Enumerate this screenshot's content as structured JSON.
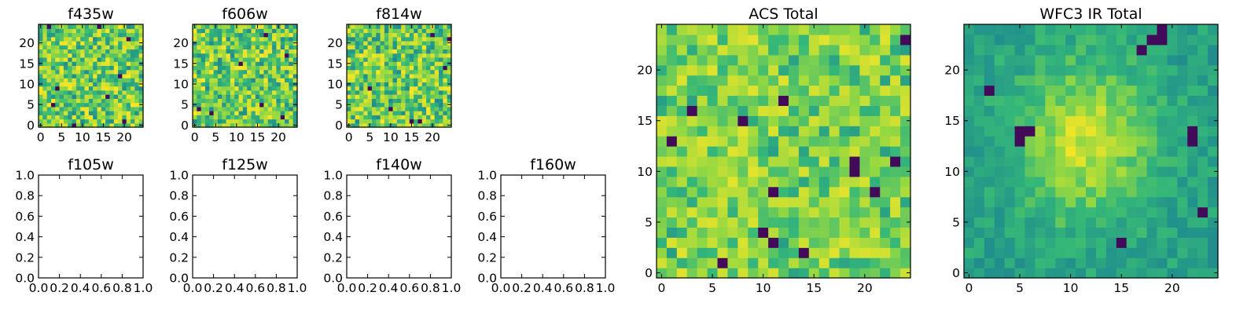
{
  "figure": {
    "background": "#ffffff"
  },
  "colormap": {
    "name": "viridis",
    "stops": [
      "#440154",
      "#31688e",
      "#21918c",
      "#35b779",
      "#90d743",
      "#fde725"
    ]
  },
  "chart_data": [
    {
      "id": "f435w",
      "type": "heatmap",
      "title": "f435w",
      "grid_size": 25,
      "xlim": [
        -0.5,
        24.5
      ],
      "ylim": [
        -0.5,
        24.5
      ],
      "xticks": [
        "0",
        "5",
        "10",
        "15",
        "20"
      ],
      "yticks": [
        "0",
        "5",
        "10",
        "15",
        "20"
      ],
      "seed": 435,
      "mode": "noise",
      "dark_cells": [
        [
          8,
          0
        ],
        [
          20,
          1
        ],
        [
          4,
          9
        ],
        [
          21,
          21
        ],
        [
          2,
          24
        ],
        [
          14,
          24
        ],
        [
          19,
          12
        ],
        [
          3,
          5
        ],
        [
          16,
          7
        ]
      ]
    },
    {
      "id": "f606w",
      "type": "heatmap",
      "title": "f606w",
      "grid_size": 25,
      "xlim": [
        -0.5,
        24.5
      ],
      "ylim": [
        -0.5,
        24.5
      ],
      "xticks": [
        "0",
        "5",
        "10",
        "15",
        "20"
      ],
      "yticks": [
        "0",
        "5",
        "10",
        "15",
        "20"
      ],
      "seed": 606,
      "mode": "noise",
      "dark_cells": [
        [
          1,
          4
        ],
        [
          17,
          22
        ],
        [
          22,
          17
        ],
        [
          16,
          5
        ],
        [
          4,
          3
        ],
        [
          11,
          15
        ],
        [
          21,
          2
        ]
      ]
    },
    {
      "id": "f814w",
      "type": "heatmap",
      "title": "f814w",
      "grid_size": 25,
      "xlim": [
        -0.5,
        24.5
      ],
      "ylim": [
        -0.5,
        24.5
      ],
      "xticks": [
        "0",
        "5",
        "10",
        "15",
        "20"
      ],
      "yticks": [
        "0",
        "5",
        "10",
        "15",
        "20"
      ],
      "seed": 814,
      "mode": "noise",
      "dark_cells": [
        [
          15,
          1
        ],
        [
          17,
          1
        ],
        [
          24,
          21
        ],
        [
          23,
          14
        ],
        [
          5,
          9
        ],
        [
          20,
          22
        ],
        [
          10,
          4
        ]
      ]
    },
    {
      "id": "f105w",
      "type": "empty",
      "title": "f105w",
      "xlim": [
        0,
        1
      ],
      "ylim": [
        0,
        1
      ],
      "xticks": [
        "0.0",
        "0.2",
        "0.4",
        "0.6",
        "0.8",
        "1.0"
      ],
      "yticks": [
        "0.0",
        "0.2",
        "0.4",
        "0.6",
        "0.8",
        "1.0"
      ]
    },
    {
      "id": "f125w",
      "type": "empty",
      "title": "f125w",
      "xlim": [
        0,
        1
      ],
      "ylim": [
        0,
        1
      ],
      "xticks": [
        "0.0",
        "0.2",
        "0.4",
        "0.6",
        "0.8",
        "1.0"
      ],
      "yticks": [
        "0.0",
        "0.2",
        "0.4",
        "0.6",
        "0.8",
        "1.0"
      ]
    },
    {
      "id": "f140w",
      "type": "empty",
      "title": "f140w",
      "xlim": [
        0,
        1
      ],
      "ylim": [
        0,
        1
      ],
      "xticks": [
        "0.0",
        "0.2",
        "0.4",
        "0.6",
        "0.8",
        "1.0"
      ],
      "yticks": [
        "0.0",
        "0.2",
        "0.4",
        "0.6",
        "0.8",
        "1.0"
      ]
    },
    {
      "id": "f160w",
      "type": "empty",
      "title": "f160w",
      "xlim": [
        0,
        1
      ],
      "ylim": [
        0,
        1
      ],
      "xticks": [
        "0.0",
        "0.2",
        "0.4",
        "0.6",
        "0.8",
        "1.0"
      ],
      "yticks": [
        "0.0",
        "0.2",
        "0.4",
        "0.6",
        "0.8",
        "1.0"
      ]
    },
    {
      "id": "acs-total",
      "type": "heatmap",
      "title": "ACS Total",
      "grid_size": 25,
      "xlim": [
        -0.5,
        24.5
      ],
      "ylim": [
        -0.5,
        24.5
      ],
      "xticks": [
        "0",
        "5",
        "10",
        "15",
        "20"
      ],
      "yticks": [
        "0",
        "5",
        "10",
        "15",
        "20"
      ],
      "seed": 101,
      "mode": "acs",
      "dark_cells": [
        [
          1,
          13
        ],
        [
          24,
          23
        ],
        [
          23,
          11
        ],
        [
          19,
          11
        ],
        [
          19,
          10
        ],
        [
          11,
          8
        ],
        [
          10,
          4
        ],
        [
          11,
          3
        ],
        [
          14,
          2
        ],
        [
          21,
          8
        ],
        [
          8,
          15
        ],
        [
          6,
          1
        ],
        [
          12,
          17
        ],
        [
          3,
          16
        ]
      ]
    },
    {
      "id": "wfc3-ir-total",
      "type": "heatmap",
      "title": "WFC3 IR Total",
      "grid_size": 25,
      "xlim": [
        -0.5,
        24.5
      ],
      "ylim": [
        -0.5,
        24.5
      ],
      "xticks": [
        "0",
        "5",
        "10",
        "15",
        "20"
      ],
      "yticks": [
        "0",
        "5",
        "10",
        "15",
        "20"
      ],
      "seed": 202,
      "mode": "ir",
      "dark_cells": [
        [
          5,
          14
        ],
        [
          6,
          14
        ],
        [
          5,
          13
        ],
        [
          18,
          23
        ],
        [
          19,
          24
        ],
        [
          19,
          23
        ],
        [
          22,
          14
        ],
        [
          22,
          13
        ],
        [
          2,
          18
        ],
        [
          15,
          3
        ],
        [
          23,
          6
        ],
        [
          17,
          22
        ]
      ]
    }
  ]
}
